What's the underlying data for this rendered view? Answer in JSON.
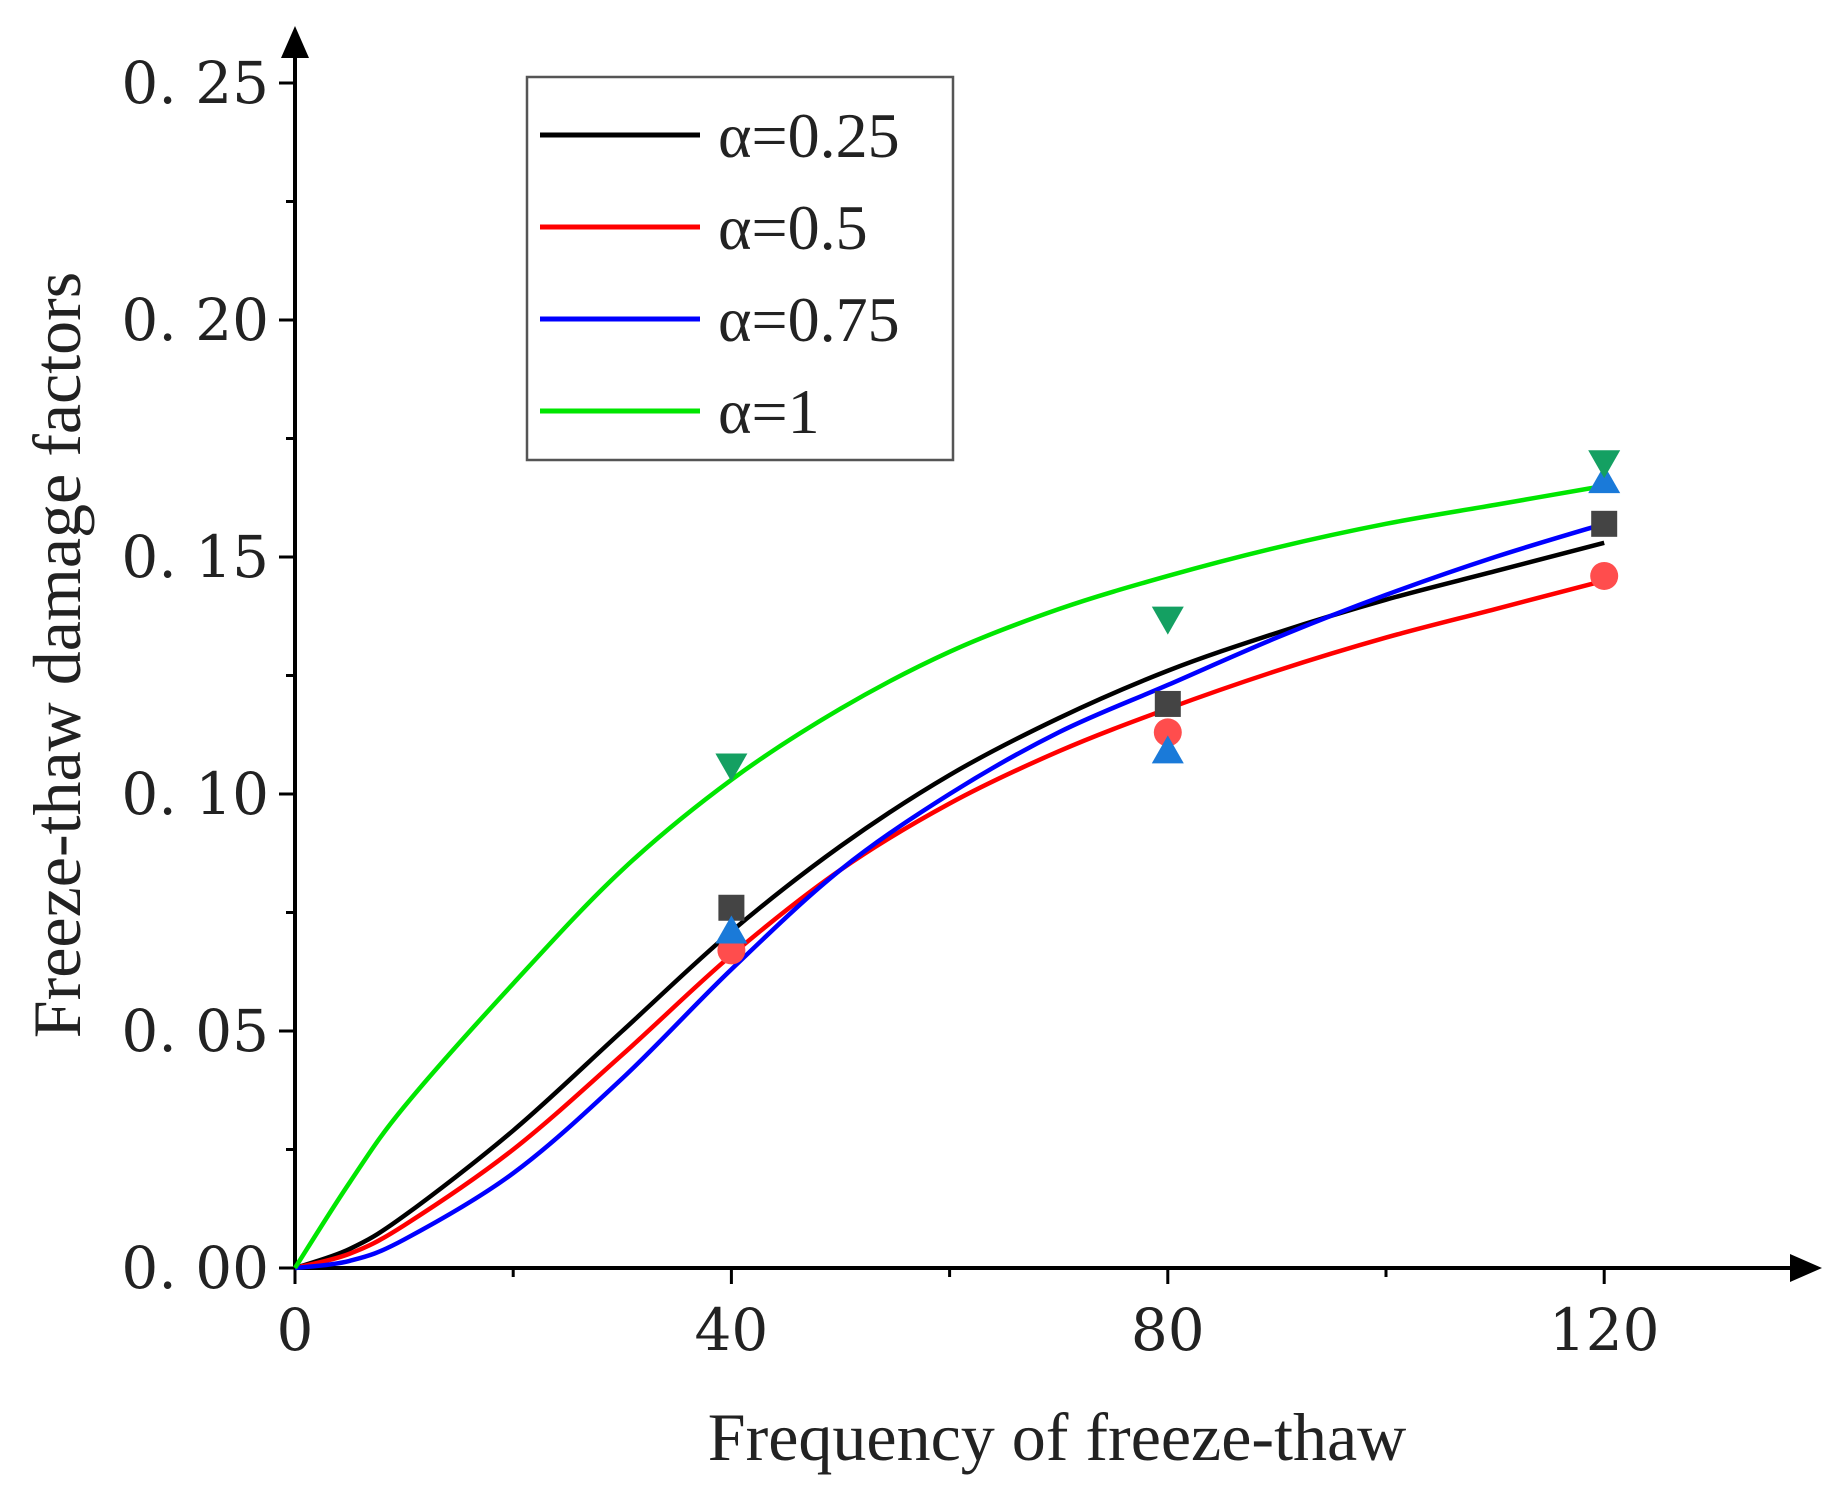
{
  "chart_data": {
    "type": "line",
    "title": "",
    "xlabel": "Frequency of freeze-thaw",
    "ylabel": "Freeze-thaw damage factors",
    "xlim": [
      0,
      140
    ],
    "ylim": [
      0,
      0.25
    ],
    "x_ticks": [
      0,
      40,
      80,
      120
    ],
    "x_tick_labels": [
      "0",
      "40",
      "80",
      "120"
    ],
    "y_ticks": [
      0,
      0.05,
      0.1,
      0.15,
      0.2,
      0.25
    ],
    "y_tick_labels": [
      "0. 00",
      "0. 05",
      "0. 10",
      "0. 15",
      "0. 20",
      "0. 25"
    ],
    "legend_position": "top-left",
    "series": [
      {
        "name": "α=0.25",
        "color": "#000000",
        "marker": "square",
        "marker_color": "#444444",
        "points": {
          "x": [
            40,
            80,
            120
          ],
          "y": [
            0.076,
            0.119,
            0.157
          ]
        },
        "fit": {
          "x": [
            0,
            5,
            10,
            20,
            30,
            40,
            50,
            60,
            70,
            80,
            90,
            100,
            110,
            120
          ],
          "y": [
            0.0,
            0.004,
            0.011,
            0.029,
            0.05,
            0.071,
            0.089,
            0.104,
            0.116,
            0.126,
            0.134,
            0.141,
            0.147,
            0.153
          ]
        }
      },
      {
        "name": "α=0.5",
        "color": "#ff0000",
        "marker": "circle",
        "marker_color": "#ff4d4d",
        "points": {
          "x": [
            40,
            80,
            120
          ],
          "y": [
            0.067,
            0.113,
            0.146
          ]
        },
        "fit": {
          "x": [
            0,
            5,
            10,
            20,
            30,
            40,
            50,
            60,
            70,
            80,
            90,
            100,
            110,
            120
          ],
          "y": [
            0.0,
            0.003,
            0.009,
            0.025,
            0.045,
            0.066,
            0.084,
            0.098,
            0.109,
            0.118,
            0.126,
            0.133,
            0.139,
            0.145
          ]
        }
      },
      {
        "name": "α=0.75",
        "color": "#0000ff",
        "marker": "triangle-up",
        "marker_color": "#1a7ad9",
        "points": {
          "x": [
            40,
            80,
            120
          ],
          "y": [
            0.071,
            0.109,
            0.166
          ]
        },
        "fit": {
          "x": [
            0,
            5,
            10,
            20,
            30,
            40,
            50,
            60,
            70,
            80,
            90,
            100,
            110,
            120
          ],
          "y": [
            0.0,
            0.0015,
            0.006,
            0.02,
            0.04,
            0.063,
            0.084,
            0.1,
            0.113,
            0.123,
            0.133,
            0.142,
            0.15,
            0.157
          ]
        }
      },
      {
        "name": "α=1",
        "color": "#00e600",
        "marker": "triangle-down",
        "marker_color": "#14a062",
        "points": {
          "x": [
            40,
            80,
            120
          ],
          "y": [
            0.106,
            0.137,
            0.17
          ]
        },
        "fit": {
          "x": [
            0,
            5,
            10,
            20,
            30,
            40,
            50,
            60,
            70,
            80,
            90,
            100,
            110,
            120
          ],
          "y": [
            0.0,
            0.018,
            0.034,
            0.06,
            0.084,
            0.103,
            0.118,
            0.13,
            0.139,
            0.146,
            0.152,
            0.157,
            0.161,
            0.165
          ]
        }
      }
    ]
  }
}
